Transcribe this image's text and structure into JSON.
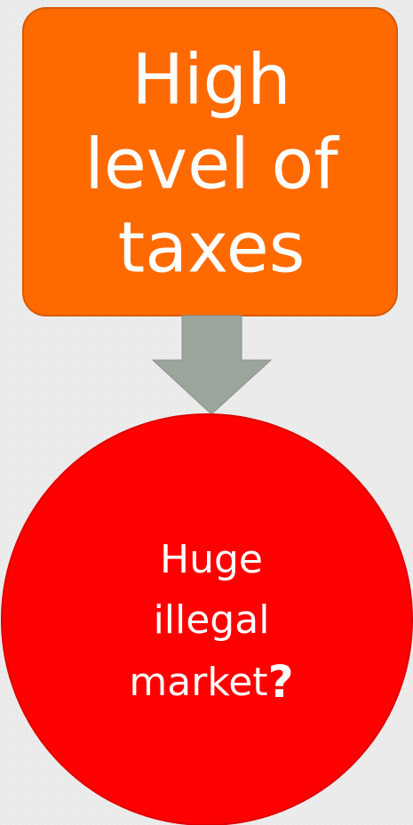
{
  "nodes": [
    {
      "lines": [
        "High",
        "level of",
        "taxes"
      ]
    },
    {
      "lines": [
        "Huge",
        "illegal",
        "market"
      ],
      "suffix": "?"
    }
  ]
}
